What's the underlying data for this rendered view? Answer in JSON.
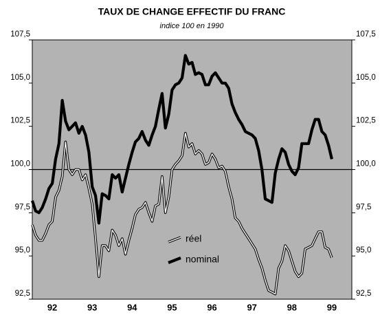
{
  "chart_data": {
    "type": "line",
    "title": "TAUX DE CHANGE EFFECTIF DU FRANC",
    "subtitle": "indice 100 en 1990",
    "x": [
      1992,
      1992.083,
      1992.167,
      1992.25,
      1992.333,
      1992.417,
      1992.5,
      1992.583,
      1992.667,
      1992.75,
      1992.833,
      1992.917,
      1993,
      1993.083,
      1993.167,
      1993.25,
      1993.333,
      1993.417,
      1993.5,
      1993.583,
      1993.667,
      1993.75,
      1993.833,
      1993.917,
      1994,
      1994.083,
      1994.167,
      1994.25,
      1994.333,
      1994.417,
      1994.5,
      1994.583,
      1994.667,
      1994.75,
      1994.833,
      1994.917,
      1995,
      1995.083,
      1995.167,
      1995.25,
      1995.333,
      1995.417,
      1995.5,
      1995.583,
      1995.667,
      1995.75,
      1995.833,
      1995.917,
      1996,
      1996.083,
      1996.167,
      1996.25,
      1996.333,
      1996.417,
      1996.5,
      1996.583,
      1996.667,
      1996.75,
      1996.833,
      1996.917,
      1997,
      1997.083,
      1997.167,
      1997.25,
      1997.333,
      1997.417,
      1997.5,
      1997.583,
      1997.667,
      1997.75,
      1997.833,
      1997.917,
      1998,
      1998.083,
      1998.167,
      1998.25,
      1998.333,
      1998.417,
      1998.5,
      1998.583,
      1998.667,
      1998.75,
      1998.833,
      1998.917,
      1999,
      1999.083,
      1999.167,
      1999.25,
      1999.333,
      1999.417,
      1999.5
    ],
    "series": [
      {
        "name": "réel",
        "color": "#ffffff",
        "outline": "#000000",
        "values": [
          96.8,
          96.2,
          95.9,
          95.9,
          96.3,
          96.8,
          97.0,
          98.4,
          98.8,
          99.6,
          101.6,
          100.0,
          99.7,
          100.0,
          100.0,
          99.4,
          99.7,
          98.9,
          98.0,
          96.0,
          93.8,
          95.6,
          95.6,
          95.3,
          96.5,
          96.2,
          95.6,
          96.0,
          95.1,
          95.9,
          96.6,
          97.4,
          97.7,
          97.8,
          98.1,
          97.5,
          97.0,
          97.9,
          98.0,
          99.6,
          97.5,
          98.4,
          100.0,
          100.3,
          100.5,
          100.8,
          102.1,
          101.3,
          101.5,
          100.9,
          101.1,
          100.9,
          100.3,
          100.4,
          100.9,
          100.6,
          100.1,
          100.2,
          99.9,
          99.0,
          98.3,
          97.2,
          97.0,
          96.6,
          96.3,
          96.0,
          95.7,
          95.4,
          94.8,
          94.3,
          93.6,
          93.0,
          92.9,
          92.8,
          94.3,
          94.7,
          95.6,
          95.3,
          94.7,
          94.1,
          93.8,
          94.0,
          95.4,
          95.5,
          95.6,
          96.0,
          96.4,
          96.4,
          95.5,
          95.4,
          94.9
        ]
      },
      {
        "name": "nominal",
        "color": "#000000",
        "values": [
          98.2,
          97.6,
          97.5,
          97.8,
          98.3,
          98.9,
          99.2,
          100.6,
          101.5,
          104.0,
          102.8,
          102.3,
          102.5,
          102.7,
          102.1,
          102.5,
          102.0,
          101.0,
          99.0,
          98.5,
          96.9,
          98.6,
          98.5,
          98.3,
          99.7,
          99.5,
          99.7,
          98.7,
          99.5,
          100.3,
          101.0,
          101.6,
          101.8,
          102.2,
          101.7,
          101.4,
          102.0,
          102.5,
          103.5,
          104.4,
          102.4,
          103.2,
          104.6,
          104.9,
          105.0,
          105.3,
          106.6,
          106.1,
          106.2,
          105.5,
          105.6,
          105.5,
          104.9,
          104.9,
          105.4,
          105.6,
          105.3,
          105.0,
          105.0,
          104.7,
          103.8,
          103.3,
          102.9,
          102.6,
          102.2,
          102.1,
          102.0,
          101.8,
          101.1,
          100.0,
          98.3,
          98.2,
          98.1,
          99.8,
          100.6,
          101.2,
          101.0,
          100.3,
          99.9,
          99.7,
          100.1,
          101.5,
          101.5,
          101.5,
          102.3,
          102.9,
          102.9,
          102.2,
          102.0,
          101.4,
          100.6
        ]
      }
    ],
    "xlim": [
      1992,
      2000
    ],
    "xticks": [
      {
        "value": 1992.5,
        "label": "92"
      },
      {
        "value": 1993.5,
        "label": "93"
      },
      {
        "value": 1994.5,
        "label": "94"
      },
      {
        "value": 1995.5,
        "label": "95"
      },
      {
        "value": 1996.5,
        "label": "96"
      },
      {
        "value": 1997.5,
        "label": "97"
      },
      {
        "value": 1998.5,
        "label": "98"
      },
      {
        "value": 1999.5,
        "label": "99"
      }
    ],
    "ylim": [
      92.5,
      107.5
    ],
    "yticks": [
      {
        "value": 92.5,
        "label": "92,5"
      },
      {
        "value": 95,
        "label": "95,0"
      },
      {
        "value": 97.5,
        "label": "97,5"
      },
      {
        "value": 100,
        "label": "100,0"
      },
      {
        "value": 102.5,
        "label": "102,5"
      },
      {
        "value": 105,
        "label": "105,0"
      },
      {
        "value": 107.5,
        "label": "107,5"
      }
    ],
    "reference_line": 100,
    "background": "#b3b3b3",
    "grid": false
  }
}
